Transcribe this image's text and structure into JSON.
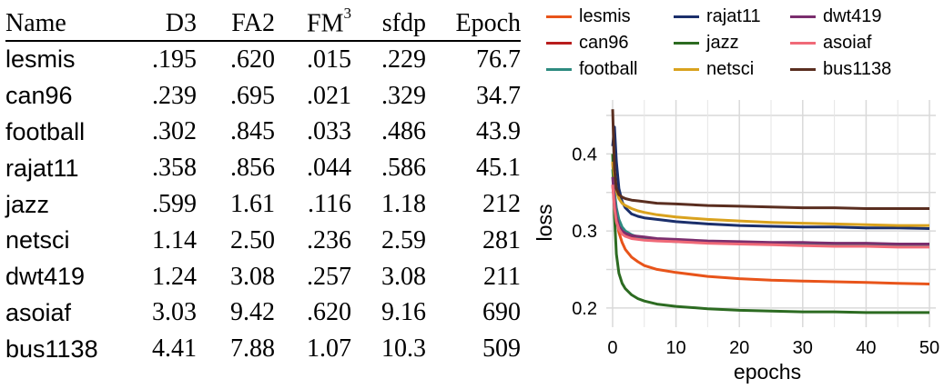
{
  "table": {
    "headers": [
      "Name",
      "D3",
      "FA2",
      "FM",
      "sfdp",
      "Epoch"
    ],
    "header_fm_superscript": "3",
    "rows": [
      [
        "lesmis",
        ".195",
        ".620",
        ".015",
        ".229",
        "76.7"
      ],
      [
        "can96",
        ".239",
        ".695",
        ".021",
        ".329",
        "34.7"
      ],
      [
        "football",
        ".302",
        ".845",
        ".033",
        ".486",
        "43.9"
      ],
      [
        "rajat11",
        ".358",
        ".856",
        ".044",
        ".586",
        "45.1"
      ],
      [
        "jazz",
        ".599",
        "1.61",
        ".116",
        "1.18",
        "212"
      ],
      [
        "netsci",
        "1.14",
        "2.50",
        ".236",
        "2.59",
        "281"
      ],
      [
        "dwt419",
        "1.24",
        "3.08",
        ".257",
        "3.08",
        "211"
      ],
      [
        "asoiaf",
        "3.03",
        "9.42",
        ".620",
        "9.16",
        "690"
      ],
      [
        "bus1138",
        "4.41",
        "7.88",
        "1.07",
        "10.3",
        "509"
      ]
    ]
  },
  "chart_data": {
    "type": "line",
    "title": "",
    "xlabel": "epochs",
    "ylabel": "loss",
    "xlim": [
      -1,
      51
    ],
    "ylim": [
      0.175,
      0.47
    ],
    "xticks": [
      0,
      10,
      20,
      30,
      40,
      50
    ],
    "yticks": [
      0.2,
      0.3,
      0.4
    ],
    "ytick_labels": [
      "0.2",
      "0.3",
      "0.4"
    ],
    "grid": true,
    "legend_position": "top",
    "series": [
      {
        "name": "lesmis",
        "color": "#e8541a",
        "x": [
          0,
          0.3,
          0.6,
          1,
          1.5,
          2,
          3,
          4,
          5,
          7,
          10,
          15,
          20,
          25,
          30,
          35,
          40,
          45,
          50
        ],
        "y": [
          0.39,
          0.35,
          0.318,
          0.298,
          0.285,
          0.276,
          0.266,
          0.26,
          0.255,
          0.25,
          0.246,
          0.241,
          0.238,
          0.236,
          0.235,
          0.234,
          0.233,
          0.232,
          0.231
        ]
      },
      {
        "name": "can96",
        "color": "#b81d1d",
        "x": [
          0,
          0.3,
          0.6,
          1,
          1.5,
          2,
          3,
          4,
          5,
          7,
          10,
          15,
          20,
          25,
          30,
          35,
          40,
          45,
          50
        ],
        "y": [
          0.36,
          0.335,
          0.315,
          0.303,
          0.297,
          0.294,
          0.291,
          0.29,
          0.289,
          0.288,
          0.287,
          0.286,
          0.285,
          0.284,
          0.284,
          0.283,
          0.283,
          0.282,
          0.282
        ]
      },
      {
        "name": "football",
        "color": "#2e8b80",
        "x": [
          0,
          0.3,
          0.6,
          1,
          1.5,
          2,
          3,
          4,
          5,
          7,
          10,
          15,
          20,
          25,
          30,
          35,
          40,
          45,
          50
        ],
        "y": [
          0.38,
          0.35,
          0.33,
          0.315,
          0.305,
          0.3,
          0.295,
          0.292,
          0.29,
          0.288,
          0.286,
          0.285,
          0.284,
          0.283,
          0.283,
          0.282,
          0.282,
          0.281,
          0.281
        ]
      },
      {
        "name": "rajat11",
        "color": "#1b2f6b",
        "x": [
          0,
          0.3,
          0.6,
          1,
          1.5,
          2,
          3,
          4,
          5,
          7,
          10,
          15,
          20,
          25,
          30,
          35,
          40,
          45,
          50
        ],
        "y": [
          0.41,
          0.435,
          0.39,
          0.355,
          0.338,
          0.33,
          0.322,
          0.319,
          0.317,
          0.315,
          0.312,
          0.309,
          0.307,
          0.306,
          0.305,
          0.305,
          0.304,
          0.304,
          0.303
        ]
      },
      {
        "name": "jazz",
        "color": "#2c6b21",
        "x": [
          0,
          0.3,
          0.6,
          1,
          1.5,
          2,
          3,
          4,
          5,
          7,
          10,
          15,
          20,
          25,
          30,
          35,
          40,
          45,
          50
        ],
        "y": [
          0.4,
          0.32,
          0.27,
          0.245,
          0.232,
          0.225,
          0.217,
          0.212,
          0.209,
          0.205,
          0.202,
          0.199,
          0.197,
          0.196,
          0.195,
          0.195,
          0.194,
          0.194,
          0.194
        ]
      },
      {
        "name": "netsci",
        "color": "#d9a21e",
        "x": [
          0,
          0.3,
          0.6,
          1,
          1.5,
          2,
          3,
          4,
          5,
          7,
          10,
          15,
          20,
          25,
          30,
          35,
          40,
          45,
          50
        ],
        "y": [
          0.39,
          0.37,
          0.352,
          0.342,
          0.336,
          0.333,
          0.329,
          0.326,
          0.324,
          0.321,
          0.318,
          0.315,
          0.313,
          0.311,
          0.31,
          0.309,
          0.308,
          0.307,
          0.307
        ]
      },
      {
        "name": "dwt419",
        "color": "#7a2e6e",
        "x": [
          0,
          0.3,
          0.6,
          1,
          1.5,
          2,
          3,
          4,
          5,
          7,
          10,
          15,
          20,
          25,
          30,
          35,
          40,
          45,
          50
        ],
        "y": [
          0.37,
          0.34,
          0.318,
          0.306,
          0.3,
          0.297,
          0.294,
          0.293,
          0.292,
          0.29,
          0.289,
          0.287,
          0.286,
          0.285,
          0.285,
          0.284,
          0.284,
          0.283,
          0.283
        ]
      },
      {
        "name": "asoiaf",
        "color": "#f06a78",
        "x": [
          0,
          0.3,
          0.6,
          1,
          1.5,
          2,
          3,
          4,
          5,
          7,
          10,
          15,
          20,
          25,
          30,
          35,
          40,
          45,
          50
        ],
        "y": [
          0.36,
          0.33,
          0.312,
          0.302,
          0.296,
          0.293,
          0.29,
          0.289,
          0.288,
          0.287,
          0.286,
          0.284,
          0.283,
          0.282,
          0.281,
          0.28,
          0.28,
          0.279,
          0.279
        ]
      },
      {
        "name": "bus1138",
        "color": "#5a2e20",
        "x": [
          0,
          0.3,
          0.6,
          1,
          1.5,
          2,
          3,
          4,
          5,
          7,
          10,
          15,
          20,
          25,
          30,
          35,
          40,
          45,
          50
        ],
        "y": [
          0.458,
          0.38,
          0.355,
          0.347,
          0.344,
          0.342,
          0.34,
          0.339,
          0.338,
          0.336,
          0.335,
          0.333,
          0.332,
          0.331,
          0.33,
          0.33,
          0.329,
          0.329,
          0.329
        ]
      }
    ]
  }
}
